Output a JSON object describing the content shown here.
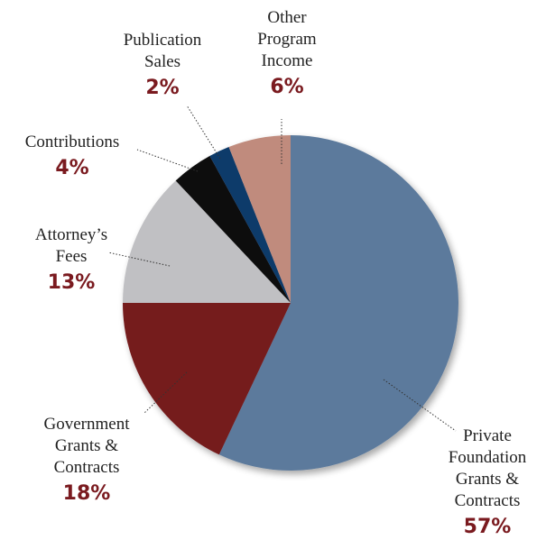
{
  "chart_data": {
    "type": "pie",
    "title": "",
    "start_angle_deg": 0,
    "direction": "clockwise",
    "slices": [
      {
        "label_lines": [
          "Private",
          "Foundation",
          "Grants &",
          "Contracts"
        ],
        "percent_label": "57%",
        "value": 57,
        "color": "#5c7a9c"
      },
      {
        "label_lines": [
          "Government",
          "Grants &",
          "Contracts"
        ],
        "percent_label": "18%",
        "value": 18,
        "color": "#741a1c"
      },
      {
        "label_lines": [
          "Attorney’s",
          "Fees"
        ],
        "percent_label": "13%",
        "value": 13,
        "color": "#c0c0c3"
      },
      {
        "label_lines": [
          "Contributions"
        ],
        "percent_label": "4%",
        "value": 4,
        "color": "#0a0a0a"
      },
      {
        "label_lines": [
          "Publication",
          "Sales"
        ],
        "percent_label": "2%",
        "value": 2,
        "color": "#0d3a6a"
      },
      {
        "label_lines": [
          "Other",
          "Program",
          "Income"
        ],
        "percent_label": "6%",
        "value": 6,
        "color": "#c08b7d"
      }
    ]
  }
}
